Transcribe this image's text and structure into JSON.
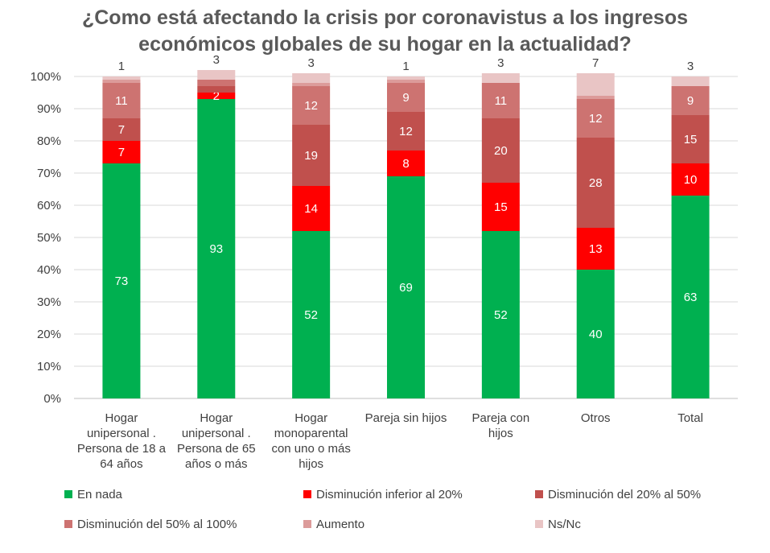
{
  "chart_data": {
    "type": "bar",
    "stacked": true,
    "title": "¿Como está afectando la crisis por coronavistus a los ingresos económicos globales de su hogar en la actualidad?",
    "title_lines": [
      "¿Como está afectando la crisis por coronavistus a los ingresos",
      "económicos globales de su hogar en la actualidad?"
    ],
    "categories": [
      [
        "Hogar",
        "unipersonal .",
        "Persona de 18 a",
        "64 años"
      ],
      [
        "Hogar",
        "unipersonal .",
        "Persona de 65",
        "años o más"
      ],
      [
        "Hogar",
        "monoparental",
        "con uno o más",
        "hijos"
      ],
      [
        "Pareja sin hijos"
      ],
      [
        "Pareja con",
        "hijos"
      ],
      [
        "Otros"
      ],
      [
        "Total"
      ]
    ],
    "ylim": [
      0,
      100
    ],
    "y_ticks": [
      "0%",
      "10%",
      "20%",
      "30%",
      "40%",
      "50%",
      "60%",
      "70%",
      "80%",
      "90%",
      "100%"
    ],
    "grid": true,
    "legend_position": "bottom",
    "series": [
      {
        "name": "En nada",
        "color": "#00b050",
        "label_color": "#ffffff",
        "values": [
          73,
          93,
          52,
          69,
          52,
          40,
          63
        ]
      },
      {
        "name": "Disminución inferior al 20%",
        "color": "#ff0000",
        "label_color": "#ffffff",
        "values": [
          7,
          2,
          14,
          8,
          15,
          13,
          10
        ]
      },
      {
        "name": "Disminución del 20% al 50%",
        "color": "#c0504d",
        "label_color": "#ffffff",
        "values": [
          7,
          2,
          19,
          12,
          20,
          28,
          15
        ]
      },
      {
        "name": "Disminución del 50% al 100%",
        "color": "#cd7371",
        "label_color": "#ffffff",
        "values": [
          11,
          2,
          12,
          9,
          11,
          12,
          9
        ]
      },
      {
        "name": "Aumento",
        "color": "#dc9b9a",
        "label_color": "#ffffff",
        "values": [
          1,
          0,
          1,
          1,
          0,
          1,
          0
        ]
      },
      {
        "name": "Ns/Nc",
        "color": "#e9c5c5",
        "label_color": "#404040",
        "values": [
          1,
          3,
          3,
          1,
          3,
          7,
          3
        ]
      }
    ],
    "data_labels": [
      [
        "73",
        "7",
        "7",
        "11",
        "",
        "1"
      ],
      [
        "93",
        "2",
        "",
        "",
        "",
        "3"
      ],
      [
        "52",
        "14",
        "19",
        "12",
        "",
        "3"
      ],
      [
        "69",
        "8",
        "12",
        "9",
        "",
        "1"
      ],
      [
        "52",
        "15",
        "20",
        "11",
        "",
        "3"
      ],
      [
        "40",
        "13",
        "28",
        "12",
        "",
        "7"
      ],
      [
        "63",
        "10",
        "15",
        "9",
        "",
        "3"
      ]
    ]
  }
}
